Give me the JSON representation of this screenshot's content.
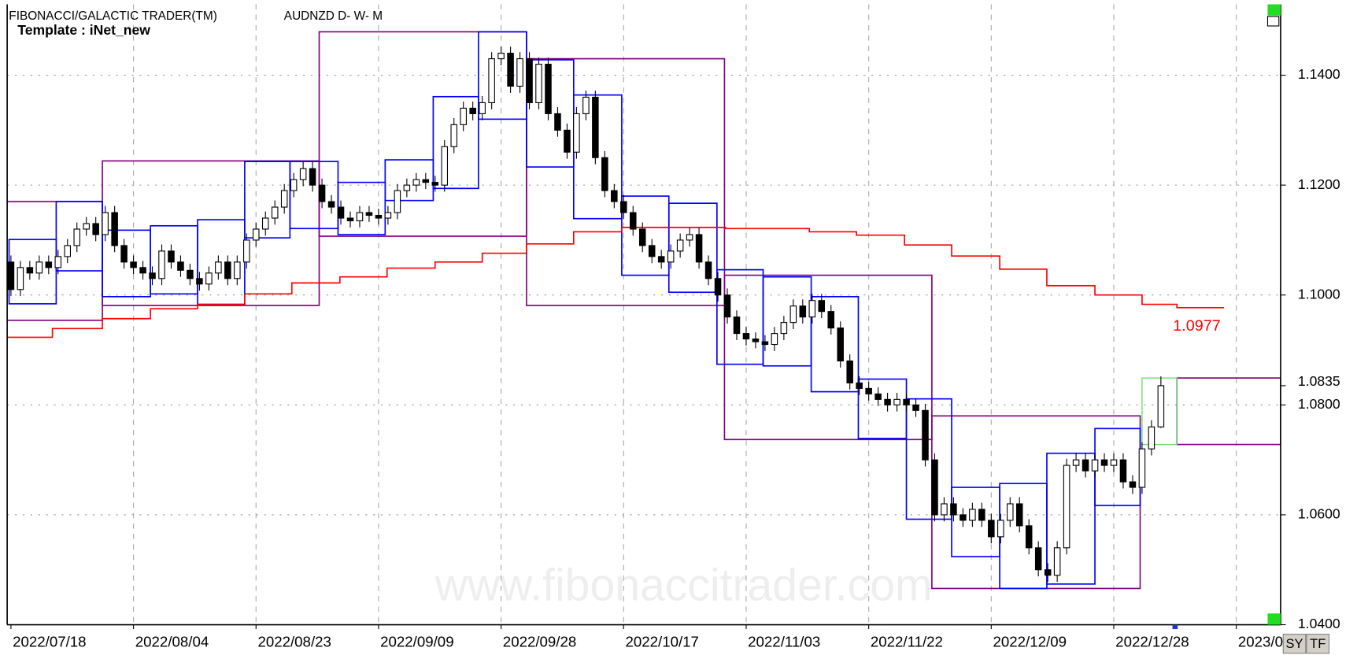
{
  "chart_data": {
    "type": "candlestick",
    "title": "FIBONACCI/GALACTIC TRADER(TM)",
    "subtitle": "AUDNZD D- W- M",
    "template": "Template : iNet_new",
    "watermark": "www.fibonaccitrader.com",
    "up_color": "#ffffff",
    "down_color": "#000000",
    "grid": true,
    "xlim": [
      -0.4,
      134.7
    ],
    "xticks": [
      {
        "value": 0,
        "label": "2022/07/18"
      },
      {
        "value": 13,
        "label": "2022/08/04"
      },
      {
        "value": 26,
        "label": "2022/08/23"
      },
      {
        "value": 39,
        "label": "2022/09/09"
      },
      {
        "value": 52,
        "label": "2022/09/28"
      },
      {
        "value": 65,
        "label": "2022/10/17"
      },
      {
        "value": 78,
        "label": "2022/11/03"
      },
      {
        "value": 91,
        "label": "2022/11/22"
      },
      {
        "value": 104,
        "label": "2022/12/09"
      },
      {
        "value": 117,
        "label": "2022/12/28"
      },
      {
        "value": 130,
        "label": "2023/0"
      }
    ],
    "ylim": [
      1.04,
      1.1529
    ],
    "yticks": [
      {
        "value": 1.14,
        "label": "1.1400"
      },
      {
        "value": 1.12,
        "label": "1.1200"
      },
      {
        "value": 1.1,
        "label": "1.1000"
      },
      {
        "value": 1.08,
        "label": "1.0800"
      },
      {
        "value": 1.06,
        "label": "1.0600"
      },
      {
        "value": 1.04,
        "label": "1.0400"
      }
    ],
    "last_price": {
      "value": 1.0835,
      "label": "1.0835"
    },
    "ohlc": [
      [
        1.106,
        1.1072,
        1.0998,
        1.101
      ],
      [
        1.101,
        1.1062,
        1.0998,
        1.105
      ],
      [
        1.105,
        1.1062,
        1.1028,
        1.104
      ],
      [
        1.104,
        1.1072,
        1.1028,
        1.106
      ],
      [
        1.106,
        1.1072,
        1.1038,
        1.105
      ],
      [
        1.105,
        1.1082,
        1.1038,
        1.107
      ],
      [
        1.107,
        1.1102,
        1.1058,
        1.109
      ],
      [
        1.109,
        1.1132,
        1.1078,
        1.112
      ],
      [
        1.112,
        1.1142,
        1.1108,
        1.113
      ],
      [
        1.113,
        1.1142,
        1.1098,
        1.111
      ],
      [
        1.111,
        1.1162,
        1.1098,
        1.115
      ],
      [
        1.115,
        1.1162,
        1.1078,
        1.109
      ],
      [
        1.109,
        1.1102,
        1.1048,
        1.106
      ],
      [
        1.106,
        1.1072,
        1.1038,
        1.105
      ],
      [
        1.105,
        1.1062,
        1.1028,
        1.104
      ],
      [
        1.104,
        1.1052,
        1.1018,
        1.103
      ],
      [
        1.103,
        1.1092,
        1.1018,
        1.108
      ],
      [
        1.108,
        1.1092,
        1.1048,
        1.106
      ],
      [
        1.106,
        1.1072,
        1.1033,
        1.1045
      ],
      [
        1.1045,
        1.1057,
        1.1018,
        1.103
      ],
      [
        1.103,
        1.1042,
        1.1008,
        1.102
      ],
      [
        1.102,
        1.1052,
        1.1008,
        1.104
      ],
      [
        1.104,
        1.1072,
        1.1028,
        1.106
      ],
      [
        1.106,
        1.1072,
        1.1018,
        1.103
      ],
      [
        1.103,
        1.1072,
        1.1018,
        1.106
      ],
      [
        1.106,
        1.1112,
        1.1048,
        1.11
      ],
      [
        1.11,
        1.1132,
        1.1088,
        1.112
      ],
      [
        1.112,
        1.1152,
        1.1108,
        1.114
      ],
      [
        1.114,
        1.1172,
        1.1128,
        1.116
      ],
      [
        1.116,
        1.1202,
        1.1148,
        1.119
      ],
      [
        1.119,
        1.1222,
        1.1178,
        1.121
      ],
      [
        1.121,
        1.1242,
        1.1198,
        1.123
      ],
      [
        1.123,
        1.1242,
        1.1188,
        1.12
      ],
      [
        1.12,
        1.1212,
        1.1158,
        1.117
      ],
      [
        1.117,
        1.1182,
        1.1148,
        1.116
      ],
      [
        1.116,
        1.1172,
        1.1128,
        1.114
      ],
      [
        1.114,
        1.1152,
        1.1123,
        1.1135
      ],
      [
        1.1135,
        1.1162,
        1.1123,
        1.115
      ],
      [
        1.115,
        1.1162,
        1.1133,
        1.1145
      ],
      [
        1.1145,
        1.1157,
        1.1128,
        1.114
      ],
      [
        1.114,
        1.1162,
        1.1128,
        1.115
      ],
      [
        1.115,
        1.1202,
        1.1138,
        1.119
      ],
      [
        1.119,
        1.1212,
        1.1178,
        1.12
      ],
      [
        1.12,
        1.1222,
        1.1188,
        1.121
      ],
      [
        1.121,
        1.1222,
        1.1193,
        1.1205
      ],
      [
        1.1205,
        1.1217,
        1.1188,
        1.12
      ],
      [
        1.12,
        1.1282,
        1.1188,
        1.127
      ],
      [
        1.127,
        1.1322,
        1.1258,
        1.131
      ],
      [
        1.131,
        1.1352,
        1.1298,
        1.134
      ],
      [
        1.134,
        1.1352,
        1.1318,
        1.133
      ],
      [
        1.133,
        1.1362,
        1.1318,
        1.135
      ],
      [
        1.135,
        1.1442,
        1.1338,
        1.143
      ],
      [
        1.143,
        1.1452,
        1.1418,
        1.144
      ],
      [
        1.144,
        1.1452,
        1.1368,
        1.138
      ],
      [
        1.138,
        1.1442,
        1.1368,
        1.143
      ],
      [
        1.143,
        1.1442,
        1.1338,
        1.135
      ],
      [
        1.135,
        1.1432,
        1.1338,
        1.142
      ],
      [
        1.142,
        1.1432,
        1.1318,
        1.133
      ],
      [
        1.133,
        1.1342,
        1.1288,
        1.13
      ],
      [
        1.13,
        1.1312,
        1.1248,
        1.126
      ],
      [
        1.126,
        1.1342,
        1.1248,
        1.133
      ],
      [
        1.133,
        1.1372,
        1.1318,
        1.136
      ],
      [
        1.136,
        1.1372,
        1.1238,
        1.125
      ],
      [
        1.125,
        1.1262,
        1.1178,
        1.119
      ],
      [
        1.119,
        1.1202,
        1.1158,
        1.117
      ],
      [
        1.117,
        1.1182,
        1.1138,
        1.115
      ],
      [
        1.115,
        1.1162,
        1.1108,
        1.112
      ],
      [
        1.112,
        1.1132,
        1.1078,
        1.109
      ],
      [
        1.109,
        1.1102,
        1.1058,
        1.107
      ],
      [
        1.107,
        1.1082,
        1.1048,
        1.106
      ],
      [
        1.106,
        1.1092,
        1.1048,
        1.108
      ],
      [
        1.108,
        1.1112,
        1.1068,
        1.11
      ],
      [
        1.11,
        1.1122,
        1.1088,
        1.111
      ],
      [
        1.111,
        1.1122,
        1.1048,
        1.106
      ],
      [
        1.106,
        1.1072,
        1.1018,
        1.103
      ],
      [
        1.103,
        1.1042,
        1.0988,
        1.1
      ],
      [
        1.1,
        1.1012,
        1.0948,
        1.096
      ],
      [
        1.096,
        1.0972,
        1.0918,
        1.093
      ],
      [
        1.093,
        1.0942,
        1.0908,
        1.092
      ],
      [
        1.092,
        1.0932,
        1.0903,
        1.0915
      ],
      [
        1.0915,
        1.0927,
        1.0898,
        1.091
      ],
      [
        1.091,
        1.0942,
        1.0898,
        1.093
      ],
      [
        1.093,
        1.0962,
        1.0918,
        1.095
      ],
      [
        1.095,
        1.0992,
        1.0938,
        1.098
      ],
      [
        1.098,
        1.0992,
        1.0948,
        1.096
      ],
      [
        1.096,
        1.1002,
        1.0948,
        1.099
      ],
      [
        1.099,
        1.1002,
        1.0958,
        1.097
      ],
      [
        1.097,
        1.0982,
        1.0928,
        1.094
      ],
      [
        1.094,
        1.0952,
        1.0868,
        1.088
      ],
      [
        1.088,
        1.0892,
        1.0828,
        1.084
      ],
      [
        1.084,
        1.0852,
        1.0818,
        1.083
      ],
      [
        1.083,
        1.0842,
        1.0808,
        1.082
      ],
      [
        1.082,
        1.0832,
        1.0798,
        1.081
      ],
      [
        1.081,
        1.0822,
        1.0788,
        1.08
      ],
      [
        1.08,
        1.0822,
        1.0788,
        1.081
      ],
      [
        1.081,
        1.0822,
        1.0788,
        1.08
      ],
      [
        1.08,
        1.0812,
        1.0778,
        1.079
      ],
      [
        1.079,
        1.0802,
        1.0688,
        1.07
      ],
      [
        1.07,
        1.0712,
        1.0588,
        1.06
      ],
      [
        1.06,
        1.0632,
        1.0588,
        1.062
      ],
      [
        1.062,
        1.0632,
        1.0588,
        1.06
      ],
      [
        1.06,
        1.0612,
        1.0578,
        1.059
      ],
      [
        1.059,
        1.0622,
        1.0578,
        1.061
      ],
      [
        1.061,
        1.0622,
        1.0578,
        1.059
      ],
      [
        1.059,
        1.0602,
        1.0548,
        1.056
      ],
      [
        1.056,
        1.0602,
        1.0548,
        1.059
      ],
      [
        1.059,
        1.0632,
        1.0578,
        1.062
      ],
      [
        1.062,
        1.0632,
        1.0568,
        1.058
      ],
      [
        1.058,
        1.0592,
        1.0528,
        1.054
      ],
      [
        1.054,
        1.0552,
        1.0488,
        1.05
      ],
      [
        1.05,
        1.0512,
        1.0478,
        1.049
      ],
      [
        1.049,
        1.0552,
        1.0478,
        1.054
      ],
      [
        1.054,
        1.0702,
        1.0528,
        1.069
      ],
      [
        1.069,
        1.0712,
        1.0678,
        1.07
      ],
      [
        1.07,
        1.0712,
        1.0668,
        1.068
      ],
      [
        1.068,
        1.0712,
        1.0668,
        1.07
      ],
      [
        1.07,
        1.0712,
        1.0678,
        1.069
      ],
      [
        1.069,
        1.0712,
        1.0678,
        1.07
      ],
      [
        1.07,
        1.0712,
        1.0648,
        1.066
      ],
      [
        1.066,
        1.0672,
        1.0638,
        1.065
      ],
      [
        1.065,
        1.0732,
        1.0638,
        1.072
      ],
      [
        1.072,
        1.0772,
        1.0708,
        1.076
      ],
      [
        1.076,
        1.0852,
        1.0758,
        1.0835
      ]
    ],
    "monthly_boxes": {
      "color": "#800080",
      "boxes": [
        [
          -1.1,
          9.7,
          1.117,
          1.0954
        ],
        [
          9.7,
          32.7,
          1.1244,
          1.0981
        ],
        [
          32.7,
          54.7,
          1.1479,
          1.1107
        ],
        [
          54.7,
          75.7,
          1.143,
          1.0981
        ],
        [
          75.7,
          97.7,
          1.1036,
          1.0737
        ],
        [
          97.7,
          119.8,
          1.078,
          1.0466
        ],
        [
          123.7,
          134.7,
          1.0849,
          1.0728
        ]
      ]
    },
    "weekly_boxes": {
      "color": "#0000ff",
      "boxes": [
        [
          -0.2,
          4.8,
          1.1101,
          1.0984
        ],
        [
          4.8,
          9.7,
          1.117,
          1.1044
        ],
        [
          9.7,
          14.8,
          1.1118,
          1.0997
        ],
        [
          14.8,
          19.8,
          1.1126,
          1.1002
        ],
        [
          19.8,
          24.8,
          1.1137,
          1.0983
        ],
        [
          24.8,
          29.6,
          1.1243,
          1.1104
        ],
        [
          29.6,
          34.7,
          1.1243,
          1.1121
        ],
        [
          34.7,
          39.7,
          1.1205,
          1.111
        ],
        [
          39.7,
          44.8,
          1.1246,
          1.1172
        ],
        [
          44.8,
          49.6,
          1.1361,
          1.1194
        ],
        [
          49.6,
          54.7,
          1.1479,
          1.132
        ],
        [
          54.7,
          59.7,
          1.1428,
          1.1233
        ],
        [
          59.7,
          64.8,
          1.1364,
          1.1139
        ],
        [
          64.8,
          69.8,
          1.118,
          1.1036
        ],
        [
          69.8,
          74.9,
          1.1167,
          1.1005
        ],
        [
          74.9,
          79.8,
          1.1046,
          1.0874
        ],
        [
          79.8,
          84.9,
          1.1033,
          1.0871
        ],
        [
          84.9,
          89.9,
          1.0997,
          1.0824
        ],
        [
          89.9,
          95.0,
          1.0847,
          1.0739
        ],
        [
          95.0,
          99.8,
          1.0811,
          1.0592
        ],
        [
          99.8,
          104.9,
          1.065,
          1.0524
        ],
        [
          104.9,
          109.9,
          1.0657,
          1.0466
        ],
        [
          109.9,
          115.0,
          1.0712,
          1.0474
        ],
        [
          115.0,
          119.8,
          1.0757,
          1.0617
        ]
      ]
    },
    "current_boxes": {
      "color": "#66dd66",
      "boxes": [
        [
          120.0,
          123.7,
          1.0849,
          1.0728
        ]
      ]
    },
    "red_line": {
      "color": "#ff0000",
      "x": [
        -1.1,
        4.4,
        4.4,
        9.7,
        9.7,
        14.8,
        14.8,
        19.8,
        19.8,
        24.8,
        24.8,
        29.8,
        29.8,
        34.9,
        34.9,
        39.9,
        39.9,
        45.0,
        45.0,
        50.0,
        50.0,
        54.7,
        54.7,
        59.7,
        59.7,
        64.8,
        64.8,
        75.8,
        75.8,
        84.7,
        84.7,
        89.7,
        89.7,
        94.8,
        94.8,
        99.8,
        99.8,
        104.9,
        104.9,
        109.9,
        109.9,
        115.0,
        115.0,
        120.0,
        120.0,
        123.7,
        123.7,
        128.7
      ],
      "values": [
        1.0923,
        1.0923,
        1.0939,
        1.0939,
        1.0957,
        1.0957,
        1.0975,
        1.0975,
        1.0983,
        1.0983,
        1.1002,
        1.1002,
        1.1022,
        1.1022,
        1.1033,
        1.1033,
        1.1049,
        1.1049,
        1.106,
        1.106,
        1.1076,
        1.1076,
        1.1093,
        1.1093,
        1.1115,
        1.1115,
        1.1123,
        1.1123,
        1.1121,
        1.1121,
        1.1115,
        1.1115,
        1.1109,
        1.1109,
        1.1091,
        1.1091,
        1.1071,
        1.1071,
        1.1047,
        1.1047,
        1.1017,
        1.1017,
        1.1,
        1.1,
        1.0983,
        1.0983,
        1.0977,
        1.0977
      ]
    },
    "buttons": [
      "SY",
      "TF"
    ]
  }
}
